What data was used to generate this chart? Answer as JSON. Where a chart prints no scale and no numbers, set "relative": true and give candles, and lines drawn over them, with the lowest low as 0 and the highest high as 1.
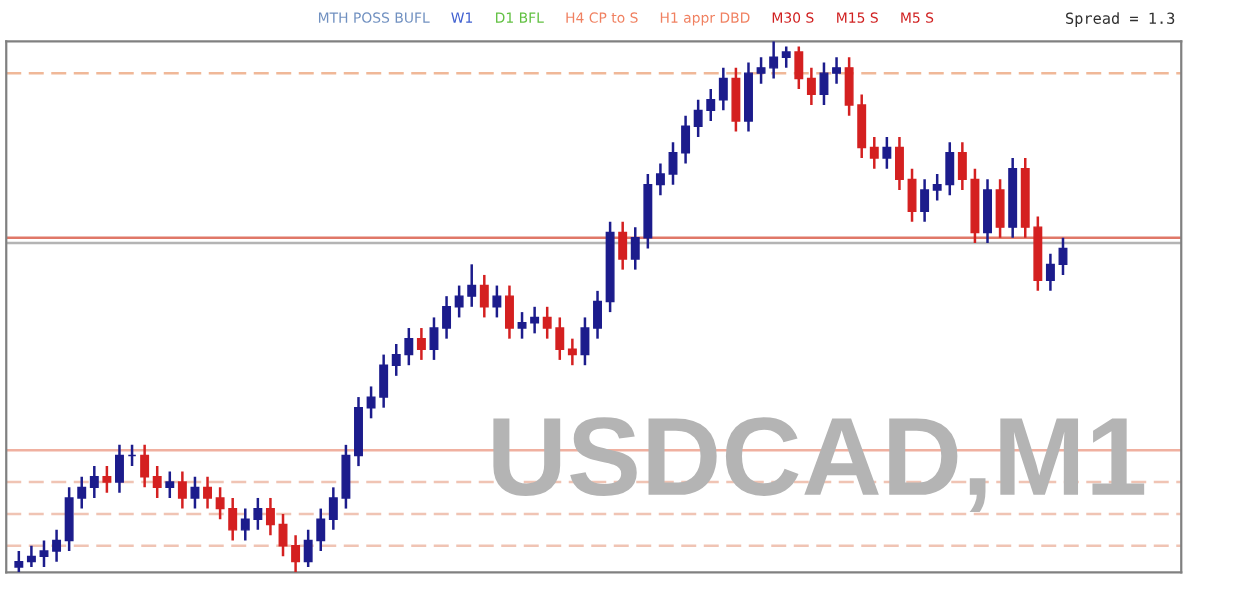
{
  "chart_data": {
    "type": "candlestick",
    "relative": true,
    "title": "USDCAD,M1",
    "annotations": [
      "MTH POSS BUFL",
      "W1",
      "D1 BFL",
      "H4 CP to S",
      "H1 appr DBD",
      "M30 S",
      "M15 S",
      "M5 S",
      "Spread = 1.3"
    ],
    "categories": [
      null,
      null,
      null,
      null,
      null,
      null,
      null,
      null,
      null,
      null,
      null,
      null,
      null,
      null,
      null,
      null,
      null,
      null,
      null,
      null,
      null,
      null,
      null,
      null,
      null,
      null,
      null,
      null,
      null,
      null,
      null,
      null,
      null,
      null,
      null,
      null,
      null,
      null,
      null,
      null,
      null,
      null,
      null,
      null,
      null,
      null,
      null,
      null,
      null,
      null,
      null,
      null,
      null,
      null,
      null,
      null,
      null,
      null,
      null,
      null,
      null,
      null,
      null,
      null,
      null,
      null,
      null,
      null,
      null,
      null,
      null,
      null,
      null,
      null,
      null,
      null,
      null,
      null,
      null,
      null,
      null,
      null,
      null,
      null
    ],
    "ohlc": [
      [
        0.01,
        0.04,
        0.0,
        0.02
      ],
      [
        0.02,
        0.05,
        0.01,
        0.03
      ],
      [
        0.03,
        0.06,
        0.01,
        0.04
      ],
      [
        0.04,
        0.08,
        0.02,
        0.06
      ],
      [
        0.06,
        0.16,
        0.04,
        0.14
      ],
      [
        0.14,
        0.18,
        0.12,
        0.16
      ],
      [
        0.16,
        0.2,
        0.14,
        0.18
      ],
      [
        0.18,
        0.2,
        0.15,
        0.17
      ],
      [
        0.17,
        0.24,
        0.15,
        0.22
      ],
      [
        0.22,
        0.24,
        0.2,
        0.22
      ],
      [
        0.22,
        0.24,
        0.16,
        0.18
      ],
      [
        0.18,
        0.2,
        0.14,
        0.16
      ],
      [
        0.16,
        0.19,
        0.14,
        0.17
      ],
      [
        0.17,
        0.19,
        0.12,
        0.14
      ],
      [
        0.14,
        0.18,
        0.12,
        0.16
      ],
      [
        0.16,
        0.18,
        0.12,
        0.14
      ],
      [
        0.14,
        0.16,
        0.1,
        0.12
      ],
      [
        0.12,
        0.14,
        0.06,
        0.08
      ],
      [
        0.08,
        0.12,
        0.06,
        0.1
      ],
      [
        0.1,
        0.14,
        0.08,
        0.12
      ],
      [
        0.12,
        0.14,
        0.07,
        0.09
      ],
      [
        0.09,
        0.11,
        0.03,
        0.05
      ],
      [
        0.05,
        0.07,
        0.0,
        0.02
      ],
      [
        0.02,
        0.08,
        0.01,
        0.06
      ],
      [
        0.06,
        0.12,
        0.04,
        0.1
      ],
      [
        0.1,
        0.16,
        0.08,
        0.14
      ],
      [
        0.14,
        0.24,
        0.12,
        0.22
      ],
      [
        0.22,
        0.33,
        0.2,
        0.31
      ],
      [
        0.31,
        0.35,
        0.29,
        0.33
      ],
      [
        0.33,
        0.41,
        0.31,
        0.39
      ],
      [
        0.39,
        0.43,
        0.37,
        0.41
      ],
      [
        0.41,
        0.46,
        0.39,
        0.44
      ],
      [
        0.44,
        0.46,
        0.4,
        0.42
      ],
      [
        0.42,
        0.48,
        0.4,
        0.46
      ],
      [
        0.46,
        0.52,
        0.44,
        0.5
      ],
      [
        0.5,
        0.54,
        0.48,
        0.52
      ],
      [
        0.52,
        0.58,
        0.5,
        0.54
      ],
      [
        0.54,
        0.56,
        0.48,
        0.5
      ],
      [
        0.5,
        0.54,
        0.48,
        0.52
      ],
      [
        0.52,
        0.54,
        0.44,
        0.46
      ],
      [
        0.46,
        0.49,
        0.44,
        0.47
      ],
      [
        0.47,
        0.5,
        0.45,
        0.48
      ],
      [
        0.48,
        0.5,
        0.44,
        0.46
      ],
      [
        0.46,
        0.48,
        0.4,
        0.42
      ],
      [
        0.42,
        0.44,
        0.39,
        0.41
      ],
      [
        0.41,
        0.48,
        0.39,
        0.46
      ],
      [
        0.46,
        0.53,
        0.44,
        0.51
      ],
      [
        0.51,
        0.66,
        0.49,
        0.64
      ],
      [
        0.64,
        0.66,
        0.57,
        0.59
      ],
      [
        0.59,
        0.65,
        0.57,
        0.63
      ],
      [
        0.63,
        0.75,
        0.61,
        0.73
      ],
      [
        0.73,
        0.77,
        0.71,
        0.75
      ],
      [
        0.75,
        0.81,
        0.73,
        0.79
      ],
      [
        0.79,
        0.86,
        0.77,
        0.84
      ],
      [
        0.84,
        0.89,
        0.82,
        0.87
      ],
      [
        0.87,
        0.91,
        0.85,
        0.89
      ],
      [
        0.89,
        0.95,
        0.87,
        0.93
      ],
      [
        0.93,
        0.95,
        0.83,
        0.85
      ],
      [
        0.85,
        0.96,
        0.83,
        0.94
      ],
      [
        0.94,
        0.97,
        0.92,
        0.95
      ],
      [
        0.95,
        1.0,
        0.93,
        0.97
      ],
      [
        0.97,
        0.99,
        0.95,
        0.98
      ],
      [
        0.98,
        0.99,
        0.91,
        0.93
      ],
      [
        0.93,
        0.95,
        0.88,
        0.9
      ],
      [
        0.9,
        0.96,
        0.88,
        0.94
      ],
      [
        0.94,
        0.97,
        0.92,
        0.95
      ],
      [
        0.95,
        0.97,
        0.86,
        0.88
      ],
      [
        0.88,
        0.9,
        0.78,
        0.8
      ],
      [
        0.8,
        0.82,
        0.76,
        0.78
      ],
      [
        0.78,
        0.82,
        0.76,
        0.8
      ],
      [
        0.8,
        0.82,
        0.72,
        0.74
      ],
      [
        0.74,
        0.76,
        0.66,
        0.68
      ],
      [
        0.68,
        0.74,
        0.66,
        0.72
      ],
      [
        0.72,
        0.75,
        0.7,
        0.73
      ],
      [
        0.73,
        0.81,
        0.71,
        0.79
      ],
      [
        0.79,
        0.81,
        0.72,
        0.74
      ],
      [
        0.74,
        0.76,
        0.62,
        0.64
      ],
      [
        0.64,
        0.74,
        0.62,
        0.72
      ],
      [
        0.72,
        0.74,
        0.63,
        0.65
      ],
      [
        0.65,
        0.78,
        0.63,
        0.76
      ],
      [
        0.76,
        0.78,
        0.63,
        0.65
      ],
      [
        0.65,
        0.67,
        0.53,
        0.55
      ],
      [
        0.55,
        0.6,
        0.53,
        0.58
      ],
      [
        0.58,
        0.63,
        0.56,
        0.61
      ]
    ],
    "colors": [
      "#1c1c8c",
      "#1c1c8c",
      "#1c1c8c",
      "#1c1c8c",
      "#1c1c8c",
      "#1c1c8c",
      "#1c1c8c",
      "#d42020",
      "#1c1c8c",
      "#1c1c8c",
      "#d42020",
      "#d42020",
      "#1c1c8c",
      "#d42020",
      "#1c1c8c",
      "#d42020",
      "#d42020",
      "#d42020",
      "#1c1c8c",
      "#1c1c8c",
      "#d42020",
      "#d42020",
      "#d42020",
      "#1c1c8c",
      "#1c1c8c",
      "#1c1c8c",
      "#1c1c8c",
      "#1c1c8c",
      "#1c1c8c",
      "#1c1c8c",
      "#1c1c8c",
      "#1c1c8c",
      "#d42020",
      "#1c1c8c",
      "#1c1c8c",
      "#1c1c8c",
      "#1c1c8c",
      "#d42020",
      "#1c1c8c",
      "#d42020",
      "#1c1c8c",
      "#1c1c8c",
      "#d42020",
      "#d42020",
      "#d42020",
      "#1c1c8c",
      "#1c1c8c",
      "#1c1c8c",
      "#d42020",
      "#1c1c8c",
      "#1c1c8c",
      "#1c1c8c",
      "#1c1c8c",
      "#1c1c8c",
      "#1c1c8c",
      "#1c1c8c",
      "#1c1c8c",
      "#d42020",
      "#1c1c8c",
      "#1c1c8c",
      "#1c1c8c",
      "#1c1c8c",
      "#d42020",
      "#d42020",
      "#1c1c8c",
      "#1c1c8c",
      "#d42020",
      "#d42020",
      "#d42020",
      "#1c1c8c",
      "#d42020",
      "#d42020",
      "#1c1c8c",
      "#1c1c8c",
      "#1c1c8c",
      "#d42020",
      "#d42020",
      "#1c1c8c",
      "#d42020",
      "#1c1c8c",
      "#d42020",
      "#d42020",
      "#1c1c8c",
      "#1c1c8c"
    ],
    "ref_lines": [
      {
        "axis": "y",
        "value": 0.94,
        "color": "#f0b898",
        "line_style": "dashed"
      },
      {
        "axis": "y",
        "value": 0.63,
        "color": "#e07868",
        "line_style": "solid"
      },
      {
        "axis": "y",
        "value": 0.62,
        "color": "#b4b4b4",
        "line_style": "solid"
      },
      {
        "axis": "y",
        "value": 0.23,
        "color": "#f0b0a0",
        "line_style": "solid"
      },
      {
        "axis": "y",
        "value": 0.17,
        "color": "#f0c4b4",
        "line_style": "dashed"
      },
      {
        "axis": "y",
        "value": 0.11,
        "color": "#f0c4b4",
        "line_style": "dashed"
      },
      {
        "axis": "y",
        "value": 0.05,
        "color": "#f0c4b4",
        "line_style": "dashed"
      }
    ],
    "grid": false,
    "legend": false
  }
}
